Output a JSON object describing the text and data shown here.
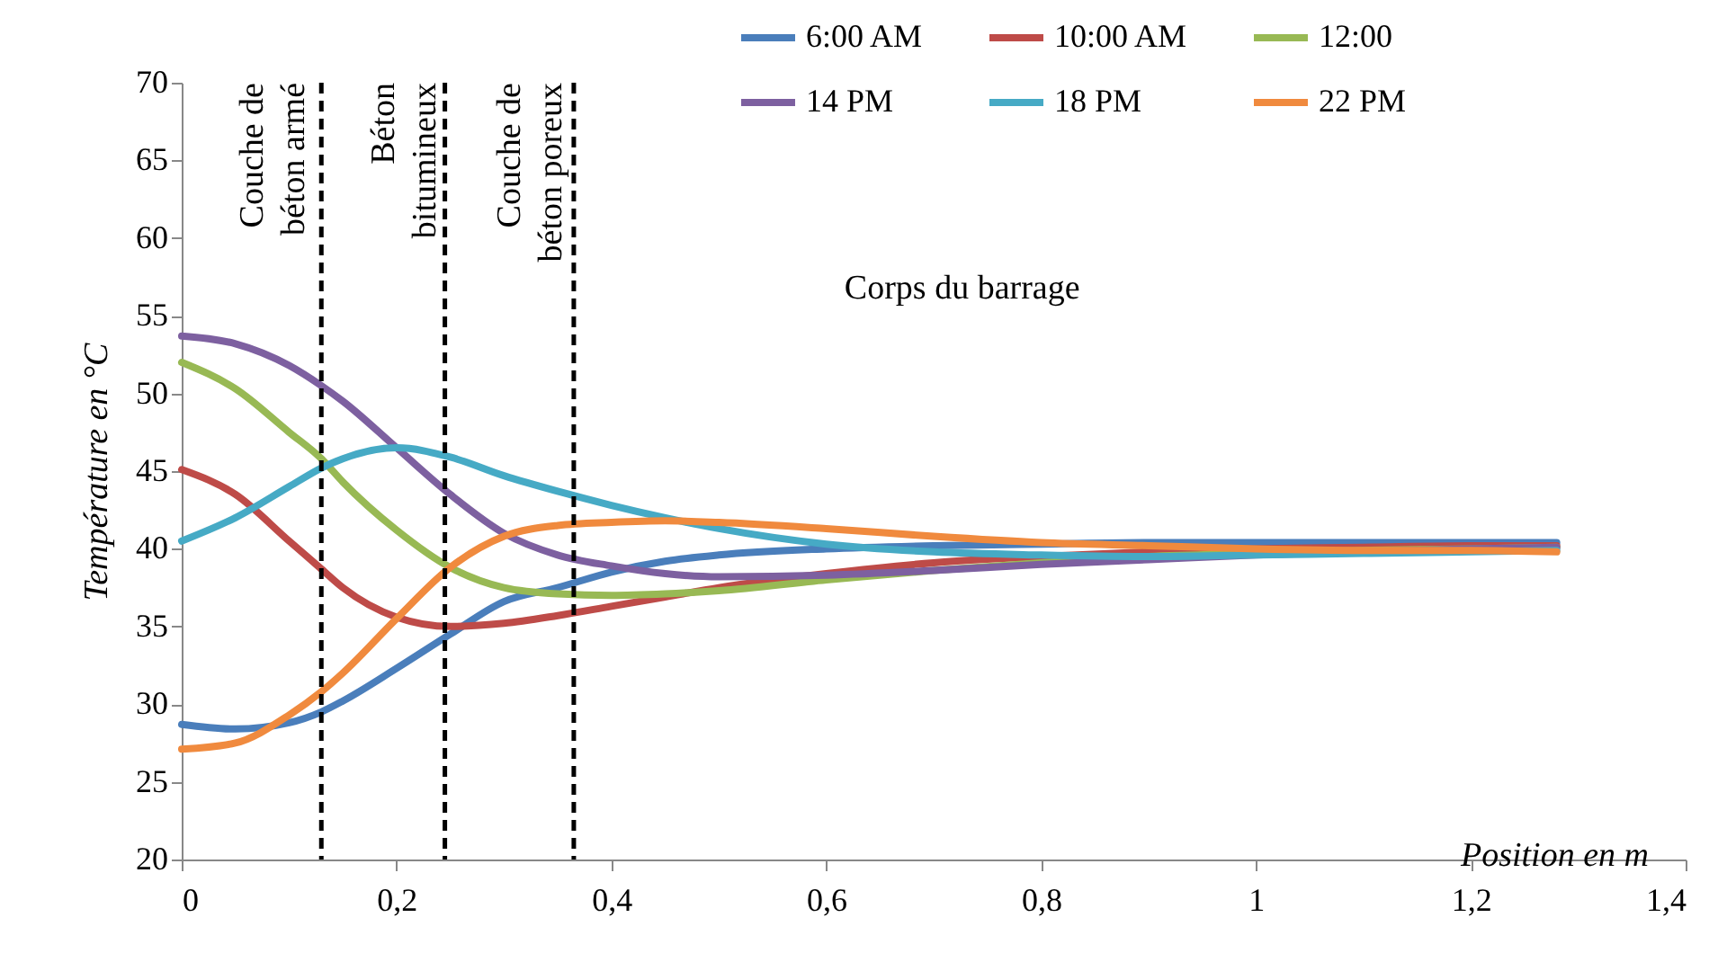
{
  "chart_data": {
    "type": "line",
    "xlabel": "Position  en m",
    "ylabel": "Température en °C",
    "x": [
      0,
      0.05,
      0.1,
      0.13,
      0.15,
      0.2,
      0.25,
      0.3,
      0.35,
      0.4,
      0.45,
      0.5,
      0.6,
      0.7,
      0.8,
      0.9,
      1.0,
      1.1,
      1.2,
      1.28
    ],
    "series": [
      {
        "name": "6:00 AM",
        "color": "#4a7ebb",
        "values": [
          28.7,
          28.4,
          28.8,
          29.5,
          30.2,
          32.3,
          34.5,
          36.6,
          37.5,
          38.5,
          39.2,
          39.6,
          40.0,
          40.2,
          40.3,
          40.4,
          40.4,
          40.4,
          40.4,
          40.4
        ]
      },
      {
        "name": "10:00 AM",
        "color": "#be4b48",
        "values": [
          45.1,
          43.5,
          40.5,
          38.7,
          37.5,
          35.6,
          35.0,
          35.2,
          35.7,
          36.3,
          36.9,
          37.5,
          38.4,
          39.1,
          39.5,
          39.8,
          40.0,
          40.1,
          40.2,
          40.2
        ]
      },
      {
        "name": "12:00",
        "color": "#98b954",
        "values": [
          52.0,
          50.3,
          47.5,
          45.8,
          44.3,
          41.2,
          38.8,
          37.5,
          37.1,
          37.0,
          37.1,
          37.3,
          38.0,
          38.6,
          39.1,
          39.5,
          39.7,
          39.9,
          40.0,
          40.1
        ]
      },
      {
        "name": "14 PM",
        "color": "#7d60a0",
        "values": [
          53.7,
          53.2,
          51.8,
          50.5,
          49.5,
          46.5,
          43.5,
          41.0,
          39.6,
          38.9,
          38.4,
          38.2,
          38.3,
          38.6,
          39.0,
          39.3,
          39.6,
          39.8,
          40.0,
          40.1
        ]
      },
      {
        "name": "18 PM",
        "color": "#46aac5",
        "values": [
          40.5,
          42.0,
          44.0,
          45.2,
          45.8,
          46.5,
          45.9,
          44.7,
          43.7,
          42.8,
          42.0,
          41.3,
          40.3,
          39.8,
          39.6,
          39.5,
          39.6,
          39.7,
          39.8,
          39.9
        ]
      },
      {
        "name": "22 PM",
        "color": "#f08a3e",
        "values": [
          27.1,
          27.5,
          29.3,
          30.8,
          32.0,
          35.5,
          38.8,
          40.8,
          41.5,
          41.7,
          41.8,
          41.7,
          41.3,
          40.8,
          40.4,
          40.2,
          40.0,
          39.9,
          39.9,
          39.8
        ]
      }
    ],
    "xlim": [
      0,
      1.4
    ],
    "xticks": [
      0,
      {
        "value": 0.2,
        "label": "0,2"
      },
      {
        "value": 0.4,
        "label": "0,4"
      },
      {
        "value": 0.6,
        "label": "0,6"
      },
      {
        "value": 0.8,
        "label": "0,8"
      },
      1,
      {
        "value": 1.2,
        "label": "1,2"
      },
      {
        "value": 1.4,
        "label": "1,4"
      }
    ],
    "ylim": [
      20,
      70
    ],
    "yticks": [
      20,
      25,
      30,
      35,
      40,
      45,
      50,
      55,
      60,
      65,
      70
    ],
    "ref_lines": [
      {
        "axis": "x",
        "value": 0.13,
        "color": "#000000",
        "line_style": "dashed"
      },
      {
        "axis": "x",
        "value": 0.245,
        "color": "#000000",
        "line_style": "dashed"
      },
      {
        "axis": "x",
        "value": 0.365,
        "color": "#000000",
        "line_style": "dashed"
      }
    ],
    "annotations": [
      "Couche de\nbéton armé",
      "Béton\nbitumineux",
      "Couche de\nbéton poreux",
      "Corps du barrage"
    ],
    "grid": false,
    "legend": "top right",
    "marker": "none",
    "line_style": "solid"
  }
}
